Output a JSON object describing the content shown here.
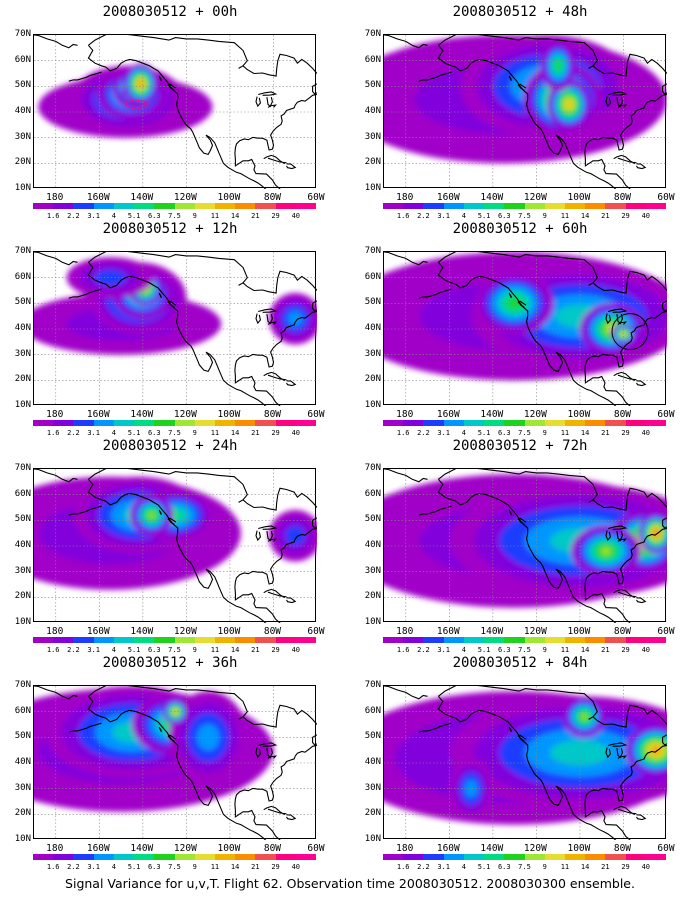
{
  "panels": [
    {
      "title": "2008030512 + 00h",
      "lead": 0
    },
    {
      "title": "2008030512 + 12h",
      "lead": 12
    },
    {
      "title": "2008030512 + 24h",
      "lead": 24
    },
    {
      "title": "2008030512 + 36h",
      "lead": 36
    },
    {
      "title": "2008030512 + 48h",
      "lead": 48
    },
    {
      "title": "2008030512 + 60h",
      "lead": 60
    },
    {
      "title": "2008030512 + 72h",
      "lead": 72
    },
    {
      "title": "2008030512 + 84h",
      "lead": 84
    }
  ],
  "lat_labels": [
    "70N",
    "60N",
    "50N",
    "40N",
    "30N",
    "20N",
    "10N"
  ],
  "lon_labels": [
    "180",
    "160W",
    "140W",
    "120W",
    "100W",
    "80W",
    "60W"
  ],
  "colorbar": {
    "labels": [
      "1.6",
      "2.2",
      "3.1",
      "4",
      "5.1",
      "6.3",
      "7.5",
      "9",
      "11",
      "14",
      "21",
      "29",
      "40"
    ],
    "colors": [
      "#a000c8",
      "#8200dc",
      "#1e3cff",
      "#0096ff",
      "#00c8c8",
      "#00dc82",
      "#1ed21e",
      "#a0e632",
      "#e6dc32",
      "#f0b400",
      "#fa8c00",
      "#f05050",
      "#ff0080",
      "#ff0090"
    ]
  },
  "caption": "Signal Variance for u,v,T. Flight 62. Observation time 2008030512. 2008030300 ensemble.",
  "map": {
    "lon_range": [
      170,
      300
    ],
    "lat_range": [
      10,
      70
    ],
    "observation_track": {
      "lon": [
        210,
        230
      ],
      "lat": [
        40,
        45
      ],
      "color": "#ff0080"
    }
  },
  "colors": {
    "background": "#ffffff",
    "coastline": "#000000",
    "grid": "#888888"
  }
}
